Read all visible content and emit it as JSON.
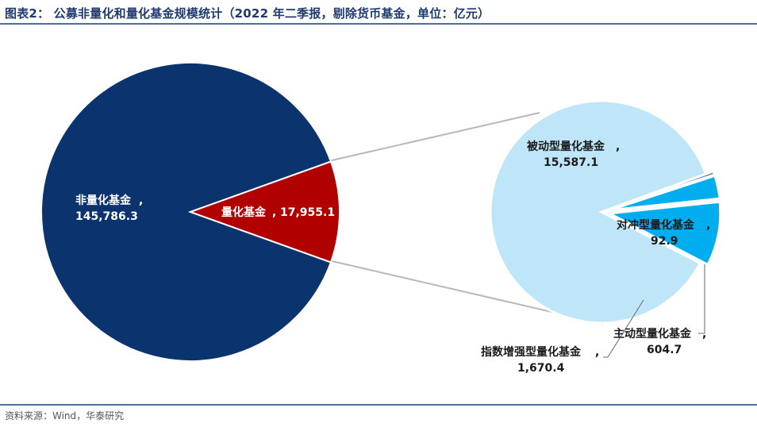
{
  "title": "图表2：  公募非量化和量化基金规模统计（2022 年二季报，剔除货币基金，单位：亿元）",
  "source": "资料来源：Wind，华泰研究",
  "chart_data": [
    {
      "type": "pie",
      "slices": [
        {
          "label": "非量化基金",
          "value": "145,786.3",
          "number": 145786.3,
          "color": "#0b336e"
        },
        {
          "label": "量化基金",
          "value": "17,955.1",
          "number": 17955.1,
          "color": "#b00000"
        }
      ]
    },
    {
      "type": "pie",
      "slices": [
        {
          "label": "被动型量化基金",
          "value": "15,587.1",
          "number": 15587.1,
          "color": "#bfe6f8"
        },
        {
          "label": "对冲型量化基金",
          "value": "92.9",
          "number": 92.9,
          "color": "#5a7aa8"
        },
        {
          "label": "主动型量化基金",
          "value": "604.7",
          "number": 604.7,
          "color": "#00aeef"
        },
        {
          "label": "指数增强型量化基金",
          "value": "1,670.4",
          "number": 1670.4,
          "color": "#00aeef"
        }
      ]
    }
  ]
}
